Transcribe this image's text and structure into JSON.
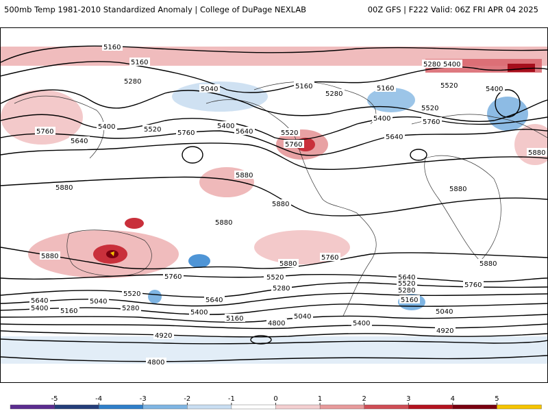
{
  "header": {
    "title_left": "500mb Temp 1981-2010 Standardized Anomaly | College of DuPage NEXLAB",
    "title_right": "00Z GFS | F222 Valid: 06Z FRI APR 04 2025"
  },
  "contour_labels": {
    "l1": "5160",
    "l2": "5160",
    "l3": "5280",
    "l4": "5040",
    "l5": "5160",
    "l6": "5280",
    "l7": "5160",
    "l8": "5280",
    "l9": "5400",
    "l10": "5520",
    "l11": "5400",
    "l12": "5760",
    "l13": "5400",
    "l14": "5520",
    "l15": "5760",
    "l16": "5400",
    "l17": "5640",
    "l18": "5520",
    "l19": "5400",
    "l20": "5760",
    "l21": "5640",
    "l22": "5640",
    "l23": "5880",
    "l24": "5880",
    "l25": "5880",
    "l26": "5880",
    "l27": "5880",
    "l28": "5880",
    "l29": "5880",
    "l30": "5880",
    "l31": "5760",
    "l32": "5760",
    "l33": "5520",
    "l34": "5640",
    "l35": "5280",
    "l36": "5640",
    "l37": "5520",
    "l38": "5400",
    "l39": "5040",
    "l40": "5160",
    "l41": "5520",
    "l42": "5280",
    "l43": "5400",
    "l44": "5160",
    "l45": "4800",
    "l46": "5040",
    "l47": "5400",
    "l48": "5640",
    "l49": "5520",
    "l50": "5280",
    "l51": "5160",
    "l52": "5040",
    "l53": "4920",
    "l54": "4920",
    "l55": "4800",
    "l56": "5760",
    "l57": "5880",
    "l58": "5760",
    "l59": "5520"
  },
  "colorbar": {
    "ticks": [
      "-5",
      "-4",
      "-3",
      "-2",
      "-1",
      "0",
      "1",
      "2",
      "3",
      "4",
      "5"
    ],
    "colors": [
      "#5b2c8f",
      "#243d7a",
      "#2f7fc9",
      "#7fb5e3",
      "#c9def2",
      "#ffffff",
      "#f3cfd0",
      "#e79a9b",
      "#cf4d55",
      "#b3131f",
      "#7a0010",
      "#f5c400"
    ]
  }
}
